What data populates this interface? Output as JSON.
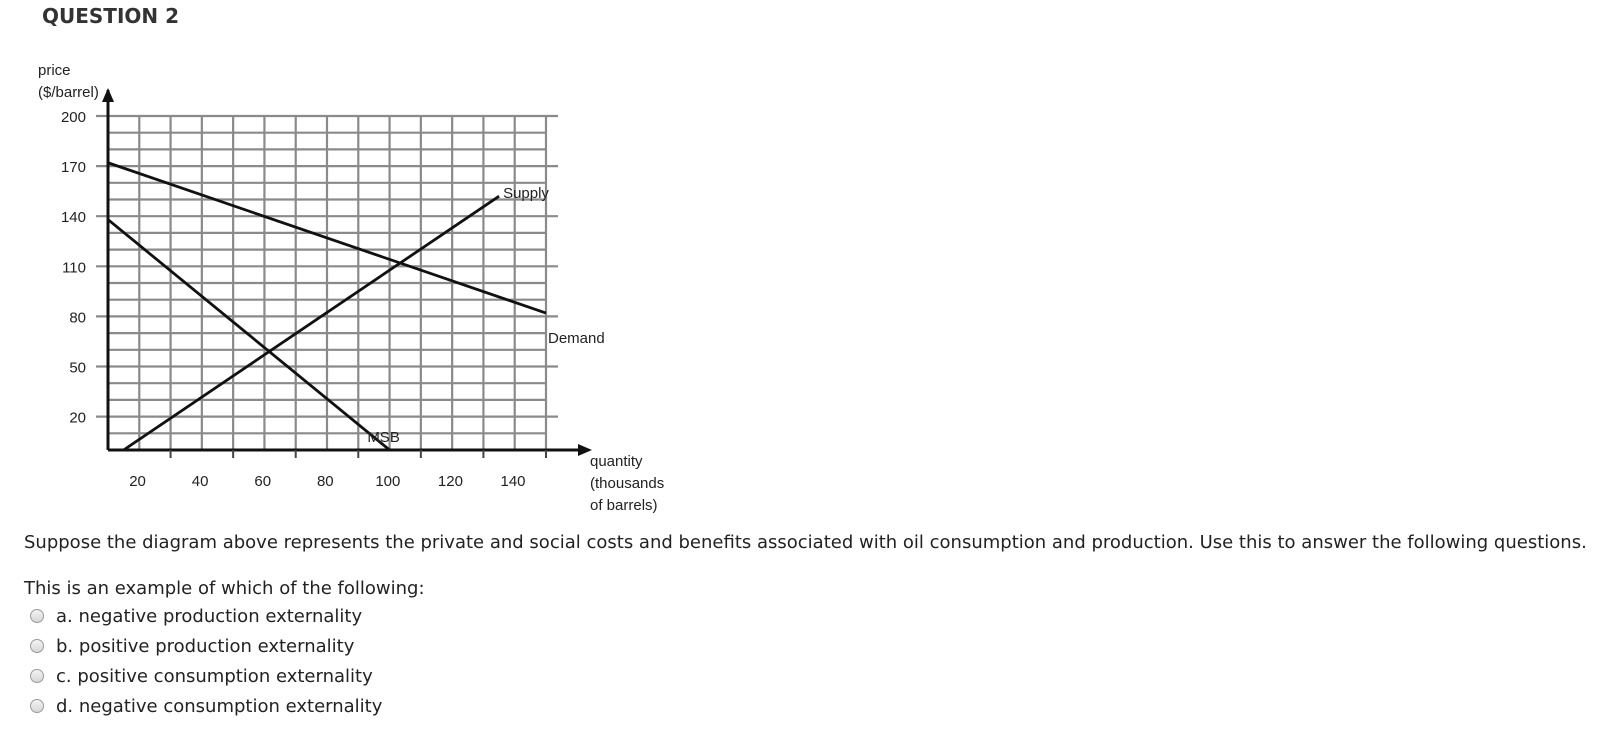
{
  "question": {
    "title": "QUESTION 2",
    "prompt": "Suppose the diagram above represents the private and social costs and benefits associated with oil consumption and production.  Use this to answer the following questions.",
    "text": "This is an example of which of the following:",
    "options": [
      {
        "letter": "a.",
        "label": "negative production externality"
      },
      {
        "letter": "b.",
        "label": "positive production externality"
      },
      {
        "letter": "c.",
        "label": "positive consumption externality"
      },
      {
        "letter": "d.",
        "label": "negative consumption externality"
      }
    ]
  },
  "chart_data": {
    "type": "line",
    "ylabel_lines": [
      "price",
      "($/barrel)"
    ],
    "xlabel_lines": [
      "quantity",
      "(thousands",
      "of barrels)"
    ],
    "xlim": [
      0,
      140
    ],
    "ylim": [
      0,
      200
    ],
    "x_ticks": [
      20,
      40,
      60,
      80,
      100,
      120,
      140
    ],
    "y_ticks": [
      20,
      50,
      80,
      110,
      140,
      170,
      200
    ],
    "grid": true,
    "series": [
      {
        "name": "Supply",
        "points": [
          [
            5,
            0
          ],
          [
            125,
            152
          ]
        ]
      },
      {
        "name": "Demand",
        "points": [
          [
            0,
            172
          ],
          [
            140,
            82
          ]
        ]
      },
      {
        "name": "MSB",
        "points": [
          [
            0,
            138
          ],
          [
            90,
            0
          ]
        ]
      }
    ]
  }
}
